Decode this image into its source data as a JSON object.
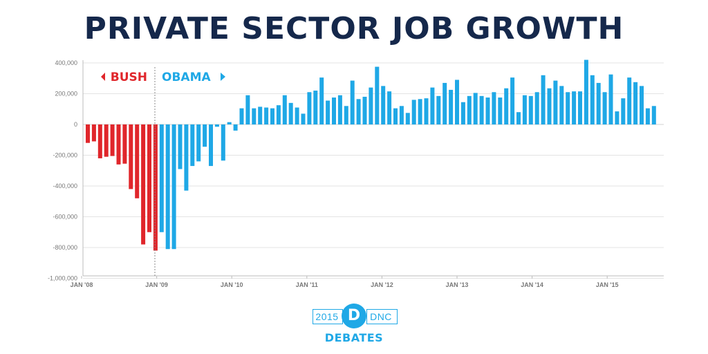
{
  "title": "PRIVATE SECTOR JOB GROWTH",
  "chart_data": {
    "type": "bar",
    "title": "PRIVATE SECTOR JOB GROWTH",
    "ylim": [
      -1000000,
      400000
    ],
    "yticks": [
      "400,000",
      "200,000",
      "0",
      "-200,000",
      "-400,000",
      "-600,000",
      "-800,000",
      "-1,000,000"
    ],
    "ytick_values": [
      400000,
      200000,
      0,
      -200000,
      -400000,
      -600000,
      -800000,
      -1000000
    ],
    "xticks": [
      "JAN '08",
      "JAN '09",
      "JAN '10",
      "JAN '11",
      "JAN '12",
      "JAN '13",
      "JAN '14",
      "JAN '15"
    ],
    "grid": true,
    "divider_label": "JAN '09",
    "series": [
      {
        "name": "BUSH",
        "color": "#e0262b",
        "months": [
          "2008-01",
          "2008-02",
          "2008-03",
          "2008-04",
          "2008-05",
          "2008-06",
          "2008-07",
          "2008-08",
          "2008-09",
          "2008-10",
          "2008-11",
          "2008-12",
          "2009-01"
        ],
        "values": [
          -120000,
          -110000,
          -220000,
          -210000,
          -205000,
          -260000,
          -255000,
          -420000,
          -480000,
          -780000,
          -700000,
          -820000,
          0
        ]
      },
      {
        "name": "OBAMA",
        "color": "#1fa8e6",
        "months": [
          "2009-01",
          "2009-02",
          "2009-03",
          "2009-04",
          "2009-05",
          "2009-06",
          "2009-07",
          "2009-08",
          "2009-09",
          "2009-10",
          "2009-11",
          "2009-12",
          "2010-01",
          "2010-02",
          "2010-03",
          "2010-04",
          "2010-05",
          "2010-06",
          "2010-07",
          "2010-08",
          "2010-09",
          "2010-10",
          "2010-11",
          "2010-12",
          "2011-01",
          "2011-02",
          "2011-03",
          "2011-04",
          "2011-05",
          "2011-06",
          "2011-07",
          "2011-08",
          "2011-09",
          "2011-10",
          "2011-11",
          "2011-12",
          "2012-01",
          "2012-02",
          "2012-03",
          "2012-04",
          "2012-05",
          "2012-06",
          "2012-07",
          "2012-08",
          "2012-09",
          "2012-10",
          "2012-11",
          "2012-12",
          "2013-01",
          "2013-02",
          "2013-03",
          "2013-04",
          "2013-05",
          "2013-06",
          "2013-07",
          "2013-08",
          "2013-09",
          "2013-10",
          "2013-11",
          "2013-12",
          "2014-01",
          "2014-02",
          "2014-03",
          "2014-04",
          "2014-05",
          "2014-06",
          "2014-07",
          "2014-08",
          "2014-09",
          "2014-10",
          "2014-11",
          "2014-12",
          "2015-01",
          "2015-02",
          "2015-03",
          "2015-04",
          "2015-05",
          "2015-06",
          "2015-07",
          "2015-08",
          "2015-09"
        ],
        "values": [
          -700000,
          -810000,
          -810000,
          -290000,
          -430000,
          -270000,
          -240000,
          -145000,
          -270000,
          -15000,
          -235000,
          15000,
          -40000,
          105000,
          190000,
          105000,
          115000,
          110000,
          105000,
          125000,
          190000,
          140000,
          110000,
          70000,
          210000,
          220000,
          305000,
          155000,
          175000,
          190000,
          120000,
          285000,
          165000,
          180000,
          240000,
          375000,
          250000,
          215000,
          105000,
          120000,
          75000,
          160000,
          165000,
          170000,
          240000,
          185000,
          270000,
          225000,
          290000,
          145000,
          185000,
          205000,
          185000,
          175000,
          210000,
          175000,
          235000,
          305000,
          80000,
          190000,
          185000,
          210000,
          320000,
          235000,
          285000,
          250000,
          210000,
          215000,
          215000,
          420000,
          320000,
          270000,
          210000,
          325000,
          85000,
          170000,
          305000,
          275000,
          250000,
          105000,
          120000
        ]
      }
    ]
  },
  "logo": {
    "year": "2015",
    "letter": "D",
    "org": "DNC",
    "subtitle": "DEBATES"
  }
}
